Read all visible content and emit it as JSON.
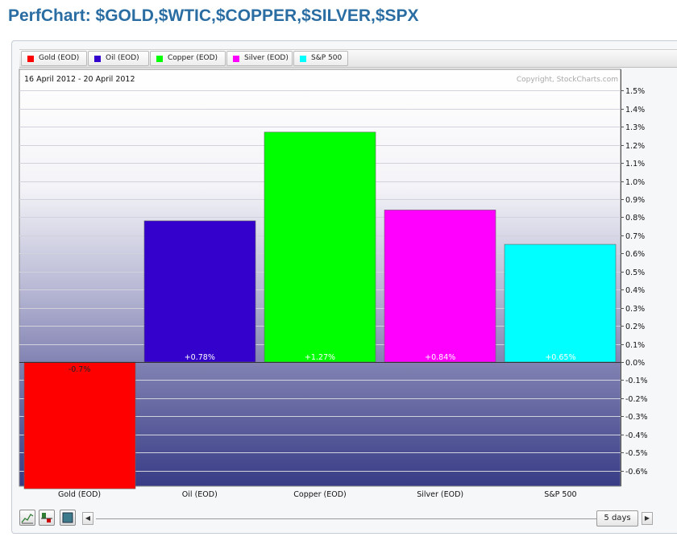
{
  "page": {
    "title": "PerfChart: $GOLD,$WTIC,$COPPER,$SILVER,$SPX"
  },
  "legend": [
    {
      "label": "Gold (EOD)",
      "color": "#ff0000"
    },
    {
      "label": "Oil (EOD)",
      "color": "#3300cc"
    },
    {
      "label": "Copper (EOD)",
      "color": "#00ff00"
    },
    {
      "label": "Silver (EOD)",
      "color": "#ff00ff"
    },
    {
      "label": "S&P 500",
      "color": "#00ffff"
    }
  ],
  "chart_data": {
    "type": "bar",
    "subtitle": "16 April 2012 - 20 April 2012",
    "copyright": "Copyright, StockCharts.com",
    "categories": [
      "Gold (EOD)",
      "Oil (EOD)",
      "Copper (EOD)",
      "Silver (EOD)",
      "S&P 500"
    ],
    "values": [
      -0.7,
      0.78,
      1.27,
      0.84,
      0.65
    ],
    "value_labels": [
      "-0.7%",
      "+0.78%",
      "+1.27%",
      "+0.84%",
      "+0.65%"
    ],
    "colors": [
      "#ff0000",
      "#3300cc",
      "#00ff00",
      "#ff00ff",
      "#00ffff"
    ],
    "ylim": [
      -0.7,
      1.5
    ],
    "yticks": [
      1.5,
      1.4,
      1.3,
      1.2,
      1.1,
      1.0,
      0.9,
      0.8,
      0.7,
      0.6,
      0.5,
      0.4,
      0.3,
      0.2,
      0.1,
      0.0,
      -0.1,
      -0.2,
      -0.3,
      -0.4,
      -0.5,
      -0.6
    ],
    "ytick_labels": [
      "1.5%",
      "1.4%",
      "1.3%",
      "1.2%",
      "1.1%",
      "1.0%",
      "0.9%",
      "0.8%",
      "0.7%",
      "0.6%",
      "0.5%",
      "0.4%",
      "0.3%",
      "0.2%",
      "0.1%",
      "0.0%",
      "-0.1%",
      "-0.2%",
      "-0.3%",
      "-0.4%",
      "-0.5%",
      "-0.6%"
    ],
    "y_axis_side": "right",
    "grid": true,
    "legend_position": "top"
  },
  "toolbar": {
    "tools": [
      {
        "icon": "line-chart-icon"
      },
      {
        "icon": "histogram-icon"
      },
      {
        "icon": "panel-icon"
      }
    ],
    "scroll_left": "◀",
    "scroll_right": "▶",
    "range_label": "5 days"
  }
}
